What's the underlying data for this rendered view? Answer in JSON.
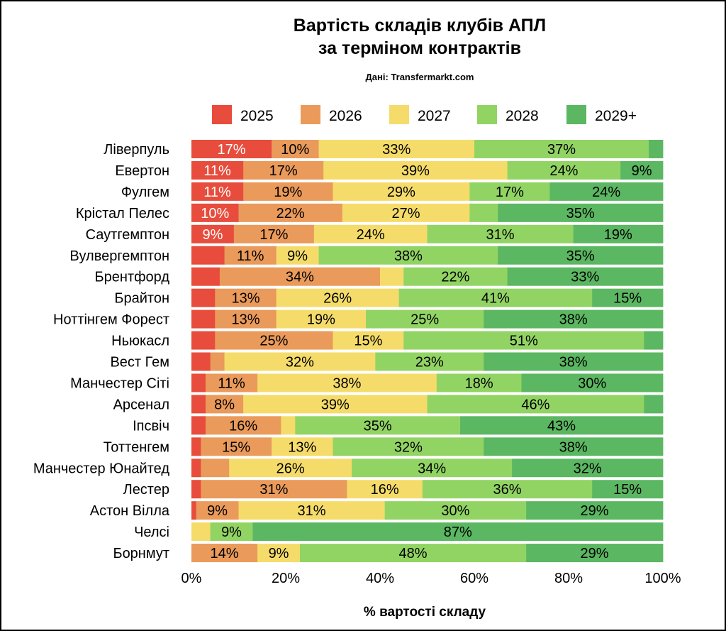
{
  "chart_data": {
    "type": "bar",
    "orientation": "horizontal",
    "stacked": true,
    "title_line1": "Вартість складів клубів АПЛ",
    "title_line2": "за терміном контрактів",
    "subtitle": "Дані: Transfermarkt.com",
    "xlabel": "% вартості складу",
    "xlim": [
      0,
      100
    ],
    "xticks": [
      "0%",
      "20%",
      "40%",
      "60%",
      "80%",
      "100%"
    ],
    "legend_position": "top",
    "categories": [
      "Ліверпуль",
      "Евертон",
      "Фулгем",
      "Крістал Пелес",
      "Саутгемптон",
      "Вулвергемптон",
      "Брентфорд",
      "Брайтон",
      "Ноттінгем Форест",
      "Ньюкасл",
      "Вест Гем",
      "Манчестер Сіті",
      "Арсенал",
      "Іпсвіч",
      "Тоттенгем",
      "Манчестер Юнайтед",
      "Лестер",
      "Астон Вілла",
      "Челсі",
      "Борнмут"
    ],
    "series": [
      {
        "name": "2025",
        "color": "#e74c3c",
        "values": [
          17,
          11,
          11,
          10,
          9,
          7,
          6,
          5,
          5,
          5,
          4,
          3,
          3,
          3,
          2,
          2,
          2,
          1,
          0,
          0
        ]
      },
      {
        "name": "2026",
        "color": "#ea9a5a",
        "values": [
          10,
          17,
          19,
          22,
          17,
          11,
          34,
          13,
          13,
          25,
          3,
          11,
          8,
          16,
          15,
          6,
          31,
          9,
          0,
          14
        ]
      },
      {
        "name": "2027",
        "color": "#f5dc6a",
        "values": [
          33,
          39,
          29,
          27,
          24,
          9,
          5,
          26,
          19,
          15,
          32,
          38,
          39,
          3,
          13,
          26,
          16,
          31,
          4,
          9
        ]
      },
      {
        "name": "2028",
        "color": "#92d464",
        "values": [
          37,
          24,
          17,
          6,
          31,
          38,
          22,
          41,
          25,
          51,
          23,
          18,
          46,
          35,
          32,
          34,
          36,
          30,
          9,
          48
        ]
      },
      {
        "name": "2029+",
        "color": "#5bb761",
        "values": [
          3,
          9,
          24,
          35,
          19,
          35,
          33,
          15,
          38,
          4,
          38,
          30,
          4,
          43,
          38,
          32,
          15,
          29,
          87,
          29
        ]
      }
    ],
    "label_threshold": 8
  }
}
